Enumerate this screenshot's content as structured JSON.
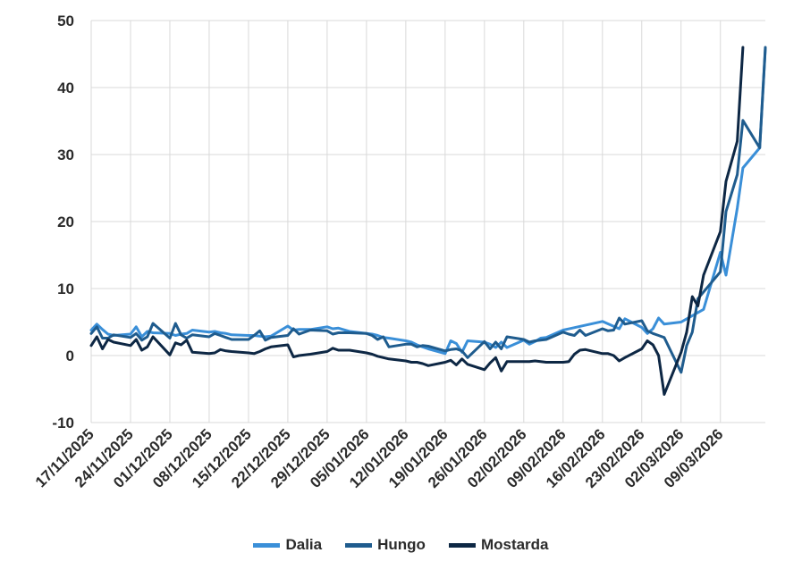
{
  "chart_data": {
    "type": "line",
    "y_axis": {
      "min": -10,
      "max": 50,
      "ticks": [
        -10,
        0,
        10,
        20,
        30,
        40,
        50
      ]
    },
    "x_axis": {
      "start": "2025-11-17",
      "end": "2026-03-17",
      "tick_labels": [
        "17/11/2025",
        "24/11/2025",
        "01/12/2025",
        "08/12/2025",
        "15/12/2025",
        "22/12/2025",
        "29/12/2025",
        "05/01/2026",
        "12/01/2026",
        "19/01/2026",
        "26/01/2026",
        "02/02/2026",
        "09/02/2026",
        "16/02/2026",
        "23/02/2026",
        "02/03/2026",
        "09/03/2026"
      ],
      "tick_dates": [
        "2025-11-17",
        "2025-11-24",
        "2025-12-01",
        "2025-12-08",
        "2025-12-15",
        "2025-12-22",
        "2025-12-29",
        "2026-01-05",
        "2026-01-12",
        "2026-01-19",
        "2026-01-26",
        "2026-02-02",
        "2026-02-09",
        "2026-02-16",
        "2026-02-23",
        "2026-03-02",
        "2026-03-09"
      ]
    },
    "grid": "vertical-and-horizontal",
    "legend_position": "bottom",
    "series": [
      {
        "name": "Dalia",
        "color": "#3a8fd8",
        "points": [
          [
            "2025-11-17",
            3.8
          ],
          [
            "2025-11-18",
            4.7
          ],
          [
            "2025-11-19",
            3.9
          ],
          [
            "2025-11-20",
            3.2
          ],
          [
            "2025-11-21",
            3.0
          ],
          [
            "2025-11-24",
            3.2
          ],
          [
            "2025-11-25",
            4.3
          ],
          [
            "2025-11-26",
            2.8
          ],
          [
            "2025-11-27",
            3.6
          ],
          [
            "2025-11-28",
            3.4
          ],
          [
            "2025-12-01",
            3.3
          ],
          [
            "2025-12-02",
            3.0
          ],
          [
            "2025-12-03",
            3.2
          ],
          [
            "2025-12-04",
            3.3
          ],
          [
            "2025-12-05",
            3.8
          ],
          [
            "2025-12-08",
            3.5
          ],
          [
            "2025-12-09",
            3.6
          ],
          [
            "2025-12-10",
            3.4
          ],
          [
            "2025-12-11",
            3.3
          ],
          [
            "2025-12-12",
            3.1
          ],
          [
            "2025-12-15",
            3.0
          ],
          [
            "2025-12-16",
            3.0
          ],
          [
            "2025-12-17",
            2.9
          ],
          [
            "2025-12-18",
            2.8
          ],
          [
            "2025-12-19",
            2.9
          ],
          [
            "2025-12-22",
            4.4
          ],
          [
            "2025-12-23",
            3.8
          ],
          [
            "2025-12-24",
            3.9
          ],
          [
            "2025-12-26",
            3.9
          ],
          [
            "2025-12-29",
            4.3
          ],
          [
            "2025-12-30",
            4.0
          ],
          [
            "2025-12-31",
            4.1
          ],
          [
            "2026-01-02",
            3.6
          ],
          [
            "2026-01-05",
            3.3
          ],
          [
            "2026-01-06",
            3.2
          ],
          [
            "2026-01-07",
            3.0
          ],
          [
            "2026-01-08",
            2.7
          ],
          [
            "2026-01-09",
            2.6
          ],
          [
            "2026-01-12",
            2.2
          ],
          [
            "2026-01-13",
            2.0
          ],
          [
            "2026-01-14",
            1.6
          ],
          [
            "2026-01-15",
            1.3
          ],
          [
            "2026-01-16",
            1.0
          ],
          [
            "2026-01-19",
            0.3
          ],
          [
            "2026-01-20",
            2.2
          ],
          [
            "2026-01-21",
            1.8
          ],
          [
            "2026-01-22",
            0.5
          ],
          [
            "2026-01-23",
            2.2
          ],
          [
            "2026-01-26",
            2.0
          ],
          [
            "2026-01-27",
            1.7
          ],
          [
            "2026-01-28",
            1.2
          ],
          [
            "2026-01-29",
            2.0
          ],
          [
            "2026-01-30",
            1.2
          ],
          [
            "2026-02-02",
            2.3
          ],
          [
            "2026-02-03",
            1.7
          ],
          [
            "2026-02-04",
            2.1
          ],
          [
            "2026-02-05",
            2.6
          ],
          [
            "2026-02-06",
            2.7
          ],
          [
            "2026-02-09",
            3.8
          ],
          [
            "2026-02-16",
            5.1
          ],
          [
            "2026-02-19",
            4.0
          ],
          [
            "2026-02-20",
            5.5
          ],
          [
            "2026-02-23",
            4.2
          ],
          [
            "2026-02-24",
            3.3
          ],
          [
            "2026-02-25",
            4.0
          ],
          [
            "2026-02-26",
            5.6
          ],
          [
            "2026-02-27",
            4.7
          ],
          [
            "2026-03-02",
            5.0
          ],
          [
            "2026-03-06",
            6.9
          ],
          [
            "2026-03-09",
            15.4
          ],
          [
            "2026-03-10",
            12.0
          ],
          [
            "2026-03-12",
            22.0
          ],
          [
            "2026-03-13",
            28.0
          ],
          [
            "2026-03-16",
            31.0
          ],
          [
            "2026-03-17",
            45.8
          ]
        ]
      },
      {
        "name": "Hungo",
        "color": "#1f5c8e",
        "points": [
          [
            "2025-11-17",
            3.3
          ],
          [
            "2025-11-18",
            4.3
          ],
          [
            "2025-11-19",
            2.6
          ],
          [
            "2025-11-20",
            2.6
          ],
          [
            "2025-11-21",
            3.1
          ],
          [
            "2025-11-24",
            2.7
          ],
          [
            "2025-11-25",
            3.3
          ],
          [
            "2025-11-26",
            2.3
          ],
          [
            "2025-11-27",
            2.8
          ],
          [
            "2025-11-28",
            4.8
          ],
          [
            "2025-12-01",
            2.6
          ],
          [
            "2025-12-02",
            4.8
          ],
          [
            "2025-12-03",
            3.1
          ],
          [
            "2025-12-04",
            2.6
          ],
          [
            "2025-12-05",
            3.1
          ],
          [
            "2025-12-08",
            2.8
          ],
          [
            "2025-12-09",
            3.3
          ],
          [
            "2025-12-10",
            3.0
          ],
          [
            "2025-12-11",
            2.7
          ],
          [
            "2025-12-12",
            2.4
          ],
          [
            "2025-12-15",
            2.4
          ],
          [
            "2025-12-16",
            3.0
          ],
          [
            "2025-12-17",
            3.7
          ],
          [
            "2025-12-18",
            2.3
          ],
          [
            "2025-12-19",
            2.7
          ],
          [
            "2025-12-22",
            3.0
          ],
          [
            "2025-12-23",
            4.0
          ],
          [
            "2025-12-24",
            3.2
          ],
          [
            "2025-12-26",
            3.8
          ],
          [
            "2025-12-29",
            3.7
          ],
          [
            "2025-12-30",
            3.2
          ],
          [
            "2025-12-31",
            3.4
          ],
          [
            "2026-01-02",
            3.4
          ],
          [
            "2026-01-05",
            3.3
          ],
          [
            "2026-01-06",
            3.0
          ],
          [
            "2026-01-07",
            2.4
          ],
          [
            "2026-01-08",
            2.8
          ],
          [
            "2026-01-09",
            1.3
          ],
          [
            "2026-01-12",
            1.7
          ],
          [
            "2026-01-13",
            1.7
          ],
          [
            "2026-01-14",
            1.3
          ],
          [
            "2026-01-15",
            1.5
          ],
          [
            "2026-01-16",
            1.4
          ],
          [
            "2026-01-19",
            0.7
          ],
          [
            "2026-01-20",
            0.9
          ],
          [
            "2026-01-21",
            1.0
          ],
          [
            "2026-01-22",
            0.7
          ],
          [
            "2026-01-23",
            -0.3
          ],
          [
            "2026-01-26",
            2.1
          ],
          [
            "2026-01-27",
            1.0
          ],
          [
            "2026-01-28",
            2.0
          ],
          [
            "2026-01-29",
            1.0
          ],
          [
            "2026-01-30",
            2.8
          ],
          [
            "2026-02-02",
            2.4
          ],
          [
            "2026-02-03",
            2.0
          ],
          [
            "2026-02-04",
            2.2
          ],
          [
            "2026-02-05",
            2.3
          ],
          [
            "2026-02-06",
            2.4
          ],
          [
            "2026-02-09",
            3.5
          ],
          [
            "2026-02-10",
            3.2
          ],
          [
            "2026-02-11",
            3.0
          ],
          [
            "2026-02-12",
            3.8
          ],
          [
            "2026-02-13",
            3.0
          ],
          [
            "2026-02-16",
            4.0
          ],
          [
            "2026-02-17",
            3.7
          ],
          [
            "2026-02-18",
            3.8
          ],
          [
            "2026-02-19",
            5.6
          ],
          [
            "2026-02-20",
            4.7
          ],
          [
            "2026-02-23",
            5.2
          ],
          [
            "2026-02-24",
            3.7
          ],
          [
            "2026-02-25",
            3.3
          ],
          [
            "2026-02-26",
            3.0
          ],
          [
            "2026-02-27",
            2.7
          ],
          [
            "2026-03-02",
            -2.5
          ],
          [
            "2026-03-03",
            1.5
          ],
          [
            "2026-03-04",
            3.5
          ],
          [
            "2026-03-05",
            8.5
          ],
          [
            "2026-03-06",
            9.5
          ],
          [
            "2026-03-09",
            12.5
          ],
          [
            "2026-03-10",
            21.5
          ],
          [
            "2026-03-12",
            27.0
          ],
          [
            "2026-03-13",
            35.1
          ],
          [
            "2026-03-16",
            31.0
          ],
          [
            "2026-03-17",
            46.0
          ]
        ]
      },
      {
        "name": "Mostarda",
        "color": "#0d2744",
        "points": [
          [
            "2025-11-17",
            1.5
          ],
          [
            "2025-11-18",
            2.8
          ],
          [
            "2025-11-19",
            1.0
          ],
          [
            "2025-11-20",
            2.4
          ],
          [
            "2025-11-21",
            2.0
          ],
          [
            "2025-11-24",
            1.5
          ],
          [
            "2025-11-25",
            2.4
          ],
          [
            "2025-11-26",
            0.8
          ],
          [
            "2025-11-27",
            1.3
          ],
          [
            "2025-11-28",
            2.8
          ],
          [
            "2025-12-01",
            0.1
          ],
          [
            "2025-12-02",
            1.9
          ],
          [
            "2025-12-03",
            1.6
          ],
          [
            "2025-12-04",
            2.3
          ],
          [
            "2025-12-05",
            0.5
          ],
          [
            "2025-12-08",
            0.3
          ],
          [
            "2025-12-09",
            0.4
          ],
          [
            "2025-12-10",
            0.9
          ],
          [
            "2025-12-11",
            0.7
          ],
          [
            "2025-12-12",
            0.6
          ],
          [
            "2025-12-15",
            0.4
          ],
          [
            "2025-12-16",
            0.3
          ],
          [
            "2025-12-17",
            0.6
          ],
          [
            "2025-12-18",
            1.0
          ],
          [
            "2025-12-19",
            1.3
          ],
          [
            "2025-12-22",
            1.6
          ],
          [
            "2025-12-23",
            -0.2
          ],
          [
            "2025-12-24",
            0.0
          ],
          [
            "2025-12-26",
            0.2
          ],
          [
            "2025-12-29",
            0.6
          ],
          [
            "2025-12-30",
            1.1
          ],
          [
            "2025-12-31",
            0.8
          ],
          [
            "2026-01-02",
            0.8
          ],
          [
            "2026-01-05",
            0.4
          ],
          [
            "2026-01-06",
            0.2
          ],
          [
            "2026-01-07",
            -0.1
          ],
          [
            "2026-01-08",
            -0.3
          ],
          [
            "2026-01-09",
            -0.5
          ],
          [
            "2026-01-12",
            -0.8
          ],
          [
            "2026-01-13",
            -1.0
          ],
          [
            "2026-01-14",
            -1.0
          ],
          [
            "2026-01-15",
            -1.2
          ],
          [
            "2026-01-16",
            -1.5
          ],
          [
            "2026-01-19",
            -1.0
          ],
          [
            "2026-01-20",
            -0.7
          ],
          [
            "2026-01-21",
            -1.4
          ],
          [
            "2026-01-22",
            -0.5
          ],
          [
            "2026-01-23",
            -1.3
          ],
          [
            "2026-01-26",
            -2.1
          ],
          [
            "2026-01-27",
            -1.1
          ],
          [
            "2026-01-28",
            -0.3
          ],
          [
            "2026-01-29",
            -2.3
          ],
          [
            "2026-01-30",
            -0.9
          ],
          [
            "2026-02-02",
            -0.9
          ],
          [
            "2026-02-03",
            -0.9
          ],
          [
            "2026-02-04",
            -0.8
          ],
          [
            "2026-02-05",
            -0.9
          ],
          [
            "2026-02-06",
            -1.0
          ],
          [
            "2026-02-09",
            -1.0
          ],
          [
            "2026-02-10",
            -0.9
          ],
          [
            "2026-02-11",
            0.2
          ],
          [
            "2026-02-12",
            0.8
          ],
          [
            "2026-02-13",
            0.9
          ],
          [
            "2026-02-16",
            0.3
          ],
          [
            "2026-02-17",
            0.3
          ],
          [
            "2026-02-18",
            0.0
          ],
          [
            "2026-02-19",
            -0.8
          ],
          [
            "2026-02-20",
            -0.3
          ],
          [
            "2026-02-23",
            1.0
          ],
          [
            "2026-02-24",
            2.2
          ],
          [
            "2026-02-25",
            1.6
          ],
          [
            "2026-02-26",
            0.0
          ],
          [
            "2026-02-27",
            -5.8
          ],
          [
            "2026-03-02",
            0.5
          ],
          [
            "2026-03-03",
            3.5
          ],
          [
            "2026-03-04",
            8.8
          ],
          [
            "2026-03-05",
            7.4
          ],
          [
            "2026-03-06",
            12.0
          ],
          [
            "2026-03-09",
            18.5
          ],
          [
            "2026-03-10",
            26.0
          ],
          [
            "2026-03-12",
            32.0
          ],
          [
            "2026-03-13",
            46.0
          ]
        ]
      }
    ]
  }
}
